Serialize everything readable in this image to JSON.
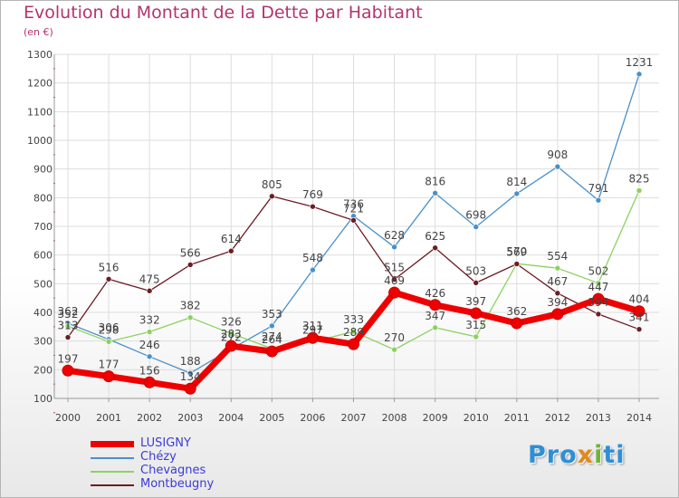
{
  "title": "Evolution du Montant de la Dette par Habitant",
  "subtitle": "(en €)",
  "logo": {
    "parts": [
      "Pro",
      "x",
      "i",
      "ti"
    ]
  },
  "colors": {
    "title": "#b5336e",
    "legend_text": "#3b3bd6",
    "grid": "#dddddd",
    "axis_text": "#444444"
  },
  "chart_data": {
    "type": "line",
    "x": [
      "2000",
      "2001",
      "2002",
      "2003",
      "2004",
      "2005",
      "2006",
      "2007",
      "2008",
      "2009",
      "2010",
      "2011",
      "2012",
      "2013",
      "2014"
    ],
    "ylim": [
      100,
      1300
    ],
    "yticks": [
      100,
      200,
      300,
      400,
      500,
      600,
      700,
      800,
      900,
      1000,
      1100,
      1200,
      1300
    ],
    "grid": true,
    "legend_position": "bottom-left",
    "series": [
      {
        "name": "LUSIGNY",
        "color": "#ee0000",
        "highlight": true,
        "values": [
          197,
          177,
          156,
          134,
          283,
          264,
          311,
          289,
          469,
          426,
          397,
          362,
          394,
          447,
          404
        ]
      },
      {
        "name": "Chézy",
        "color": "#4a90c8",
        "highlight": false,
        "values": [
          362,
          306,
          246,
          188,
          272,
          353,
          548,
          736,
          628,
          816,
          698,
          814,
          908,
          791,
          1231
        ]
      },
      {
        "name": "Chevagnes",
        "color": "#8cd160",
        "highlight": false,
        "values": [
          352,
          298,
          332,
          382,
          326,
          274,
          297,
          333,
          270,
          347,
          315,
          570,
          554,
          502,
          825
        ]
      },
      {
        "name": "Montbeugny",
        "color": "#6b1d24",
        "highlight": false,
        "values": [
          313,
          516,
          475,
          566,
          614,
          805,
          769,
          721,
          515,
          625,
          503,
          569,
          467,
          394,
          341
        ]
      }
    ]
  }
}
